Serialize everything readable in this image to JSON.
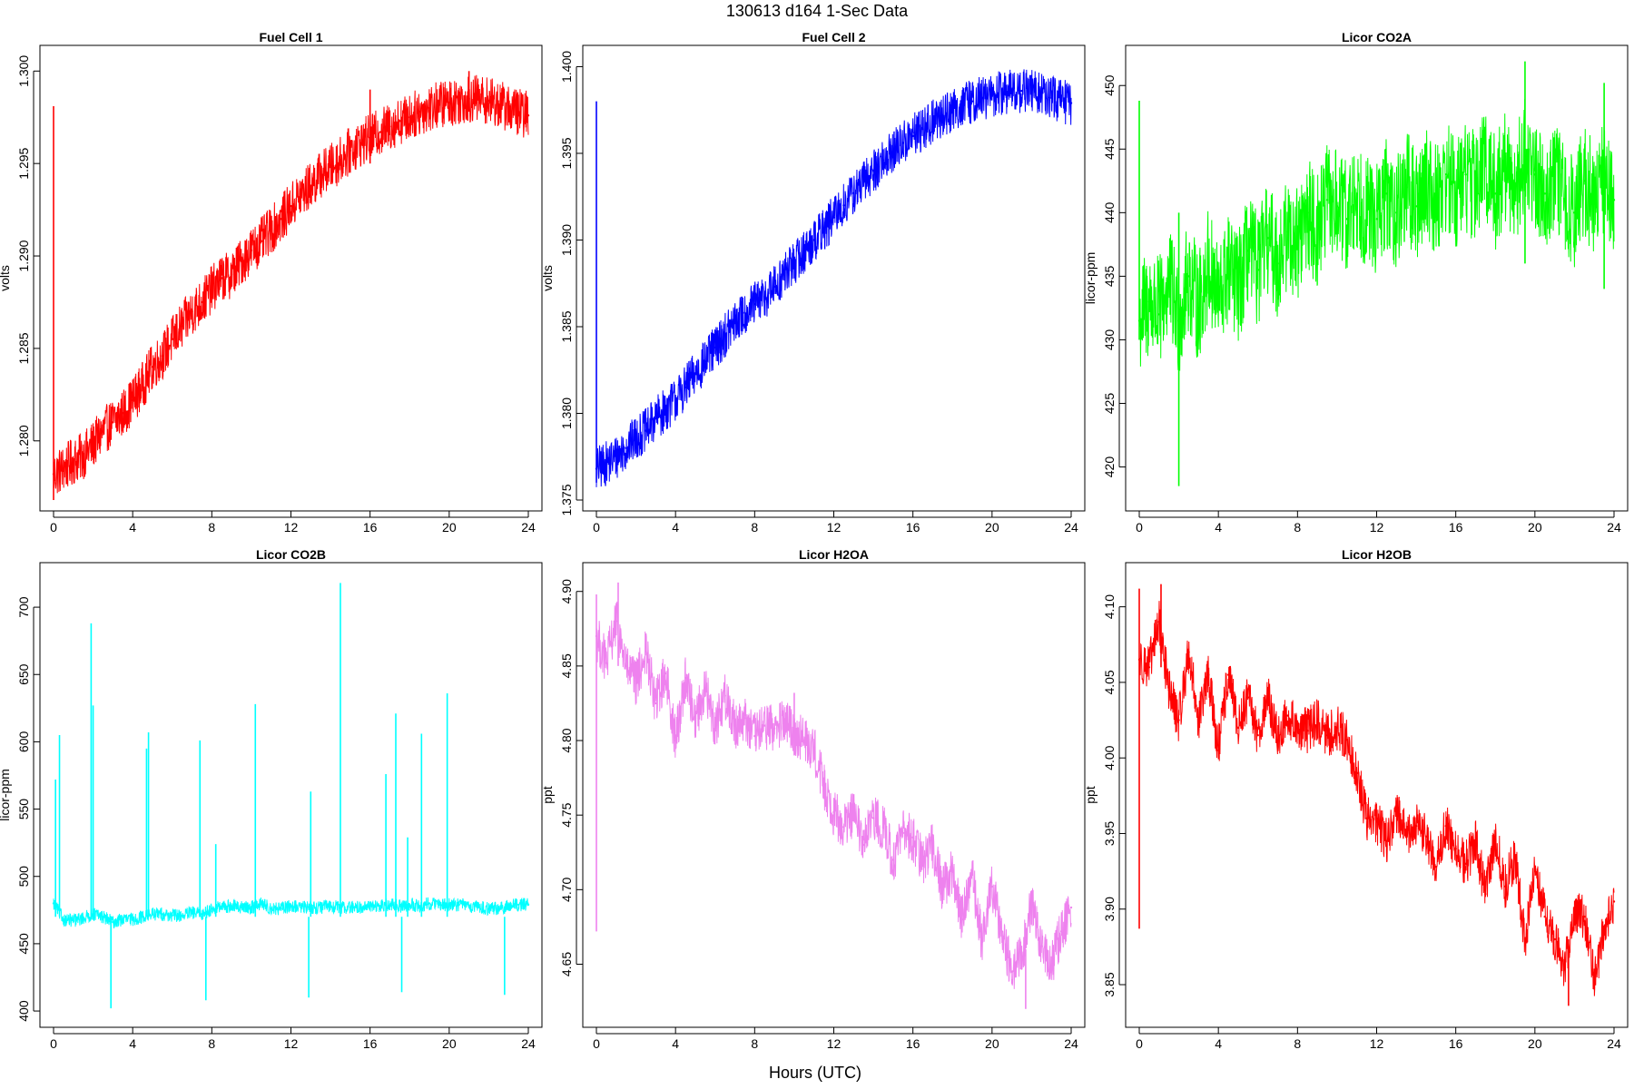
{
  "figure": {
    "title": "130613   d164   1-Sec Data",
    "xlabel": "Hours (UTC)"
  },
  "chart_data": [
    {
      "type": "line",
      "title": "Fuel Cell 1",
      "xlabel": "",
      "ylabel": "volts",
      "color": "#ff0000",
      "xlim": [
        0,
        24
      ],
      "ylim": [
        1.2768,
        1.3008
      ],
      "xticks": [
        0,
        4,
        8,
        12,
        16,
        20,
        24
      ],
      "yticks": [
        "1.280",
        "1.285",
        "1.290",
        "1.295",
        "1.300"
      ],
      "grid": false,
      "noise": 0.0013,
      "x": [
        0,
        0.5,
        1,
        1.5,
        2,
        2.5,
        3,
        3.5,
        4,
        4.5,
        5,
        5.5,
        6,
        6.5,
        7,
        7.5,
        8,
        8.5,
        9,
        9.5,
        10,
        10.5,
        11,
        11.5,
        12,
        12.5,
        13,
        13.5,
        14,
        14.5,
        15,
        15.5,
        16,
        16.5,
        17,
        17.5,
        18,
        18.5,
        19,
        19.5,
        20,
        20.5,
        21,
        21.5,
        22,
        22.5,
        23,
        23.5,
        24
      ],
      "y": [
        1.2782,
        1.2785,
        1.2789,
        1.2792,
        1.2798,
        1.2805,
        1.281,
        1.2815,
        1.2822,
        1.283,
        1.284,
        1.2846,
        1.2855,
        1.2862,
        1.287,
        1.2875,
        1.2882,
        1.2888,
        1.289,
        1.2897,
        1.2903,
        1.2908,
        1.2914,
        1.292,
        1.2927,
        1.2933,
        1.2938,
        1.2944,
        1.2948,
        1.2952,
        1.2957,
        1.2961,
        1.2964,
        1.2967,
        1.297,
        1.2973,
        1.2975,
        1.2978,
        1.298,
        1.2982,
        1.2983,
        1.2984,
        1.2985,
        1.2985,
        1.2984,
        1.2982,
        1.298,
        1.2978,
        1.2976
      ],
      "spikes": [
        [
          0,
          1.2768,
          1.2981
        ],
        [
          16,
          1.295,
          1.299
        ],
        [
          21,
          1.2978,
          1.3
        ]
      ]
    },
    {
      "type": "line",
      "title": "Fuel Cell 2",
      "xlabel": "",
      "ylabel": "volts",
      "color": "#0000ff",
      "xlim": [
        0,
        24
      ],
      "ylim": [
        1.375,
        1.4006
      ],
      "xticks": [
        0,
        4,
        8,
        12,
        16,
        20,
        24
      ],
      "yticks": [
        "1.375",
        "1.380",
        "1.385",
        "1.390",
        "1.395",
        "1.400"
      ],
      "grid": false,
      "noise": 0.0013,
      "x": [
        0,
        0.5,
        1,
        1.5,
        2,
        2.5,
        3,
        3.5,
        4,
        4.5,
        5,
        5.5,
        6,
        6.5,
        7,
        7.5,
        8,
        8.5,
        9,
        9.5,
        10,
        10.5,
        11,
        11.5,
        12,
        12.5,
        13,
        13.5,
        14,
        14.5,
        15,
        15.5,
        16,
        16.5,
        17,
        17.5,
        18,
        18.5,
        19,
        19.5,
        20,
        20.5,
        21,
        21.5,
        22,
        22.5,
        23,
        23.5,
        24
      ],
      "y": [
        1.3768,
        1.3771,
        1.3775,
        1.378,
        1.3786,
        1.379,
        1.3797,
        1.3802,
        1.3808,
        1.3815,
        1.3823,
        1.383,
        1.3838,
        1.3845,
        1.3852,
        1.3858,
        1.3863,
        1.3867,
        1.3873,
        1.388,
        1.3887,
        1.3893,
        1.39,
        1.3906,
        1.3913,
        1.392,
        1.3927,
        1.3933,
        1.394,
        1.3946,
        1.3951,
        1.3956,
        1.396,
        1.3964,
        1.3968,
        1.3972,
        1.3975,
        1.3978,
        1.398,
        1.3982,
        1.3983,
        1.3985,
        1.3986,
        1.3986,
        1.3986,
        1.3984,
        1.3982,
        1.398,
        1.3979
      ],
      "spikes": [
        [
          0,
          1.376,
          1.398
        ]
      ]
    },
    {
      "type": "line",
      "title": "Licor CO2A",
      "xlabel": "",
      "ylabel": "licor-ppm",
      "color": "#00ff00",
      "xlim": [
        0,
        24
      ],
      "ylim": [
        417.4,
        452.3
      ],
      "xticks": [
        0,
        4,
        8,
        12,
        16,
        20,
        24
      ],
      "yticks": [
        "420",
        "425",
        "430",
        "435",
        "440",
        "445",
        "450"
      ],
      "grid": false,
      "noise": 4.5,
      "x": [
        0,
        0.5,
        1,
        1.5,
        2,
        2.5,
        3,
        3.5,
        4,
        4.5,
        5,
        5.5,
        6,
        6.5,
        7,
        7.5,
        8,
        8.5,
        9,
        9.5,
        10,
        10.5,
        11,
        11.5,
        12,
        12.5,
        13,
        13.5,
        14,
        14.5,
        15,
        15.5,
        16,
        16.5,
        17,
        17.5,
        18,
        18.5,
        19,
        19.5,
        20,
        20.5,
        21,
        21.5,
        22,
        22.5,
        23,
        23.5,
        24
      ],
      "y": [
        431.5,
        433.0,
        432.0,
        434.5,
        431.5,
        435.0,
        432.5,
        436.0,
        433.0,
        435.5,
        434.0,
        437.0,
        435.5,
        438.0,
        436.0,
        438.5,
        437.5,
        440.0,
        438.5,
        441.0,
        440.5,
        439.5,
        441.5,
        440.0,
        439.5,
        441.5,
        440.0,
        442.0,
        440.5,
        442.5,
        441.0,
        443.0,
        441.5,
        443.0,
        442.0,
        444.0,
        441.5,
        443.5,
        442.0,
        444.5,
        443.0,
        441.5,
        443.0,
        441.0,
        440.0,
        442.5,
        441.0,
        443.0,
        441.0
      ],
      "spikes": [
        [
          0,
          430.0,
          448.8
        ],
        [
          2,
          418.5,
          440.0
        ],
        [
          19.5,
          436.0,
          451.9
        ],
        [
          23.5,
          434.0,
          450.2
        ]
      ]
    },
    {
      "type": "line",
      "title": "Licor CO2B",
      "xlabel": "",
      "ylabel": "licor-ppm",
      "color": "#00ffff",
      "xlim": [
        0,
        24
      ],
      "ylim": [
        396.0,
        725.0
      ],
      "xticks": [
        0,
        4,
        8,
        12,
        16,
        20,
        24
      ],
      "yticks": [
        "400",
        "450",
        "500",
        "550",
        "600",
        "650",
        "700"
      ],
      "grid": false,
      "noise": 5,
      "x": [
        0,
        0.5,
        1,
        1.5,
        2,
        2.5,
        3,
        3.5,
        4,
        4.5,
        5,
        5.5,
        6,
        6.5,
        7,
        7.5,
        8,
        8.5,
        9,
        9.5,
        10,
        10.5,
        11,
        11.5,
        12,
        12.5,
        13,
        13.5,
        14,
        14.5,
        15,
        15.5,
        16,
        16.5,
        17,
        17.5,
        18,
        18.5,
        19,
        19.5,
        20,
        20.5,
        21,
        21.5,
        22,
        22.5,
        23,
        23.5,
        24
      ],
      "y": [
        480,
        468,
        467,
        469,
        472,
        470,
        466,
        468,
        468,
        470,
        472,
        472,
        471,
        471,
        473,
        472,
        476,
        477,
        478,
        477,
        477,
        480,
        476,
        476,
        478,
        477,
        477,
        477,
        478,
        477,
        477,
        477,
        478,
        478,
        479,
        478,
        479,
        478,
        480,
        479,
        479,
        479,
        478,
        477,
        476,
        476,
        478,
        479,
        479
      ],
      "spikes": [
        [
          0.1,
          470,
          572
        ],
        [
          0.3,
          470,
          605
        ],
        [
          1.9,
          468,
          688
        ],
        [
          2.0,
          470,
          627
        ],
        [
          2.9,
          402,
          470
        ],
        [
          4.7,
          470,
          595
        ],
        [
          4.8,
          470,
          607
        ],
        [
          7.4,
          470,
          601
        ],
        [
          7.7,
          408,
          470
        ],
        [
          8.2,
          470,
          524
        ],
        [
          10.2,
          470,
          628
        ],
        [
          12.9,
          410,
          470
        ],
        [
          13.0,
          470,
          563
        ],
        [
          14.5,
          470,
          718
        ],
        [
          16.8,
          470,
          576
        ],
        [
          17.3,
          470,
          621
        ],
        [
          17.6,
          414,
          470
        ],
        [
          17.9,
          470,
          529
        ],
        [
          18.6,
          470,
          606
        ],
        [
          19.9,
          470,
          636
        ],
        [
          22.8,
          412,
          470
        ]
      ]
    },
    {
      "type": "line",
      "title": "Licor H2OA",
      "xlabel": "",
      "ylabel": "ppt",
      "color": "#ee82ee",
      "xlim": [
        0,
        24
      ],
      "ylim": [
        4.615,
        4.912
      ],
      "xticks": [
        0,
        4,
        8,
        12,
        16,
        20,
        24
      ],
      "yticks": [
        "4.65",
        "4.70",
        "4.75",
        "4.80",
        "4.85",
        "4.90"
      ],
      "grid": false,
      "noise": 0.016,
      "x": [
        0,
        0.5,
        1,
        1.5,
        2,
        2.5,
        3,
        3.5,
        4,
        4.5,
        5,
        5.5,
        6,
        6.5,
        7,
        7.5,
        8,
        8.5,
        9,
        9.5,
        10,
        10.5,
        11,
        11.5,
        12,
        12.5,
        13,
        13.5,
        14,
        14.5,
        15,
        15.5,
        16,
        16.5,
        17,
        17.5,
        18,
        18.5,
        19,
        19.5,
        20,
        20.5,
        21,
        21.5,
        22,
        22.5,
        23,
        23.5,
        24
      ],
      "y": [
        4.87,
        4.852,
        4.88,
        4.85,
        4.838,
        4.86,
        4.825,
        4.845,
        4.8,
        4.842,
        4.815,
        4.835,
        4.81,
        4.83,
        4.81,
        4.815,
        4.803,
        4.81,
        4.808,
        4.812,
        4.806,
        4.8,
        4.795,
        4.77,
        4.752,
        4.742,
        4.752,
        4.73,
        4.748,
        4.742,
        4.72,
        4.738,
        4.735,
        4.718,
        4.73,
        4.7,
        4.712,
        4.68,
        4.71,
        4.665,
        4.702,
        4.672,
        4.645,
        4.655,
        4.69,
        4.662,
        4.648,
        4.672,
        4.688
      ],
      "spikes": [
        [
          0,
          4.672,
          4.898
        ],
        [
          1.1,
          4.85,
          4.906
        ],
        [
          10,
          4.79,
          4.832
        ],
        [
          21.7,
          4.62,
          4.66
        ]
      ]
    },
    {
      "type": "line",
      "title": "Licor H2OB",
      "xlabel": "",
      "ylabel": "ppt",
      "color": "#ff0000",
      "xlim": [
        0,
        24
      ],
      "ylim": [
        3.829,
        4.122
      ],
      "xticks": [
        0,
        4,
        8,
        12,
        16,
        20,
        24
      ],
      "yticks": [
        "3.85",
        "3.90",
        "3.95",
        "4.00",
        "4.05",
        "4.10"
      ],
      "grid": false,
      "noise": 0.015,
      "x": [
        0,
        0.5,
        1,
        1.5,
        2,
        2.5,
        3,
        3.5,
        4,
        4.5,
        5,
        5.5,
        6,
        6.5,
        7,
        7.5,
        8,
        8.5,
        9,
        9.5,
        10,
        10.5,
        11,
        11.5,
        12,
        12.5,
        13,
        13.5,
        14,
        14.5,
        15,
        15.5,
        16,
        16.5,
        17,
        17.5,
        18,
        18.5,
        19,
        19.5,
        20,
        20.5,
        21,
        21.5,
        22,
        22.5,
        23,
        23.5,
        24
      ],
      "y": [
        4.065,
        4.06,
        4.09,
        4.045,
        4.025,
        4.07,
        4.025,
        4.055,
        4.005,
        4.055,
        4.02,
        4.04,
        4.015,
        4.04,
        4.012,
        4.028,
        4.02,
        4.018,
        4.025,
        4.015,
        4.02,
        4.012,
        3.99,
        3.96,
        3.958,
        3.945,
        3.965,
        3.948,
        3.955,
        3.948,
        3.928,
        3.955,
        3.94,
        3.93,
        3.945,
        3.91,
        3.948,
        3.915,
        3.935,
        3.88,
        3.925,
        3.895,
        3.88,
        3.86,
        3.9,
        3.895,
        3.855,
        3.885,
        3.905
      ],
      "spikes": [
        [
          0,
          3.887,
          4.112
        ],
        [
          1.1,
          4.06,
          4.115
        ],
        [
          21.7,
          3.836,
          3.88
        ]
      ]
    }
  ]
}
